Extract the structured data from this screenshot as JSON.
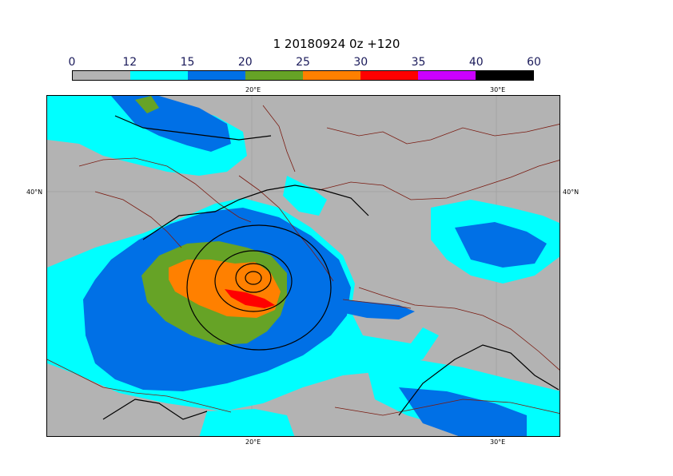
{
  "title": "1 20180924 0z +120",
  "colorbar": {
    "labels": [
      "0",
      "12",
      "15",
      "20",
      "25",
      "30",
      "35",
      "40",
      "60"
    ],
    "colors": [
      "#b3b3b3",
      "#00ffff",
      "#0070e6",
      "#66a326",
      "#ff8000",
      "#ff0000",
      "#cc00ff",
      "#000000"
    ]
  },
  "axes": {
    "top": [
      "20°E",
      "30°E"
    ],
    "bottom": [
      "20°E",
      "30°E"
    ],
    "left": [
      "40°N"
    ],
    "right": [
      "40°N"
    ]
  },
  "map_colors": {
    "land": "#b3b3b3",
    "coast": "#7a1a10",
    "contour": "#000000"
  }
}
